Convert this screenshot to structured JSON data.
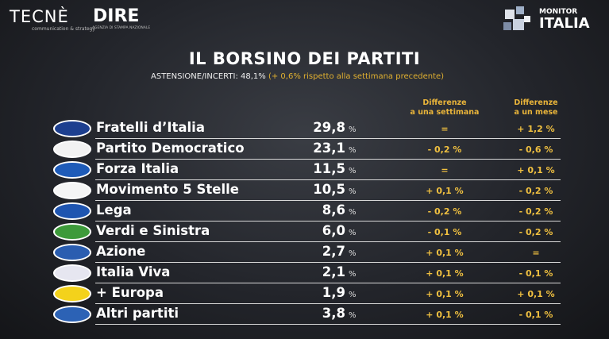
{
  "header": {
    "brand_left": "TECNÈ",
    "brand_left_sub": "communication & strategy",
    "brand_middle": "DIRE",
    "brand_middle_sub": "AGENZIA DI STAMPA NAZIONALE",
    "brand_right_top": "MONITOR",
    "brand_right_bottom": "ITALIA"
  },
  "title": "IL BORSINO DEI PARTITI",
  "subtitle": {
    "label": "ASTENSIONE/INCERTI: 48,1%",
    "note": "(+ 0,6% rispetto alla settimana precedente)"
  },
  "table": {
    "columns": {
      "week": "Differenze\na una settimana",
      "month": "Differenze\na un mese"
    },
    "rows": [
      {
        "party": "Fratelli d’Italia",
        "value": "29,8",
        "unit": "%",
        "week": "=",
        "month": "+ 1,2 %"
      },
      {
        "party": "Partito Democratico",
        "value": "23,1",
        "unit": "%",
        "week": "- 0,2 %",
        "month": "- 0,6 %"
      },
      {
        "party": "Forza Italia",
        "value": "11,5",
        "unit": "%",
        "week": "=",
        "month": "+ 0,1 %"
      },
      {
        "party": "Movimento 5 Stelle",
        "value": "10,5",
        "unit": "%",
        "week": "+ 0,1 %",
        "month": "- 0,2 %"
      },
      {
        "party": "Lega",
        "value": "8,6",
        "unit": "%",
        "week": "- 0,2 %",
        "month": "- 0,2 %"
      },
      {
        "party": "Verdi e Sinistra",
        "value": "6,0",
        "unit": "%",
        "week": "- 0,1 %",
        "month": "- 0,2 %"
      },
      {
        "party": "Azione",
        "value": "2,7",
        "unit": "%",
        "week": "+ 0,1 %",
        "month": "="
      },
      {
        "party": "Italia Viva",
        "value": "2,1",
        "unit": "%",
        "week": "+ 0,1 %",
        "month": "- 0,1 %"
      },
      {
        "party": "+ Europa",
        "value": "1,9",
        "unit": "%",
        "week": "+ 0,1 %",
        "month": "+ 0,1 %"
      },
      {
        "party": "Altri partiti",
        "value": "3,8",
        "unit": "%",
        "week": "+ 0,1 %",
        "month": "- 0,1 %"
      }
    ]
  }
}
